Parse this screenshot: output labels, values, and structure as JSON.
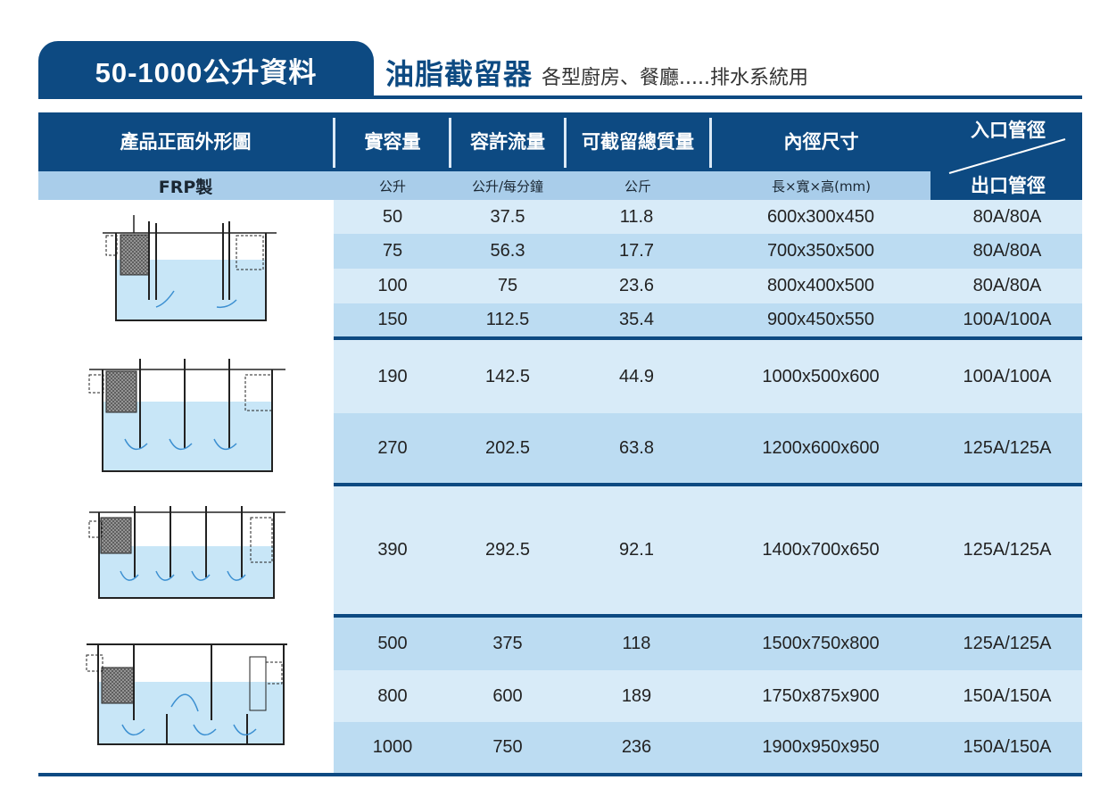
{
  "header": {
    "tab_label": "50-1000公升資料",
    "title": "油脂截留器",
    "subtitle": "各型廚房、餐廳.....排水系統用"
  },
  "table": {
    "columns": [
      "產品正面外形圖",
      "實容量",
      "容許流量",
      "可截留總質量",
      "內徑尺寸"
    ],
    "pipe_inlet_label": "入口管徑",
    "pipe_outlet_label": "出口管徑",
    "units": [
      "FRP製",
      "公升",
      "公升/每分鐘",
      "公斤",
      "長×寬×高(mm)"
    ],
    "rows": [
      {
        "volume": "50",
        "flow": "37.5",
        "mass": "11.8",
        "size": "600x300x450",
        "pipe": "80A/80A"
      },
      {
        "volume": "75",
        "flow": "56.3",
        "mass": "17.7",
        "size": "700x350x500",
        "pipe": "80A/80A"
      },
      {
        "volume": "100",
        "flow": "75",
        "mass": "23.6",
        "size": "800x400x500",
        "pipe": "80A/80A"
      },
      {
        "volume": "150",
        "flow": "112.5",
        "mass": "35.4",
        "size": "900x450x550",
        "pipe": "100A/100A"
      },
      {
        "volume": "190",
        "flow": "142.5",
        "mass": "44.9",
        "size": "1000x500x600",
        "pipe": "100A/100A"
      },
      {
        "volume": "270",
        "flow": "202.5",
        "mass": "63.8",
        "size": "1200x600x600",
        "pipe": "125A/125A"
      },
      {
        "volume": "390",
        "flow": "292.5",
        "mass": "92.1",
        "size": "1400x700x650",
        "pipe": "125A/125A"
      },
      {
        "volume": "500",
        "flow": "375",
        "mass": "118",
        "size": "1500x750x800",
        "pipe": "125A/125A"
      },
      {
        "volume": "800",
        "flow": "600",
        "mass": "189",
        "size": "1750x875x900",
        "pipe": "150A/150A"
      },
      {
        "volume": "1000",
        "flow": "750",
        "mass": "236",
        "size": "1900x950x950",
        "pipe": "150A/150A"
      }
    ]
  },
  "colors": {
    "navy": "#0d4a82",
    "light_blue": "#d8ebf8",
    "mid_blue": "#bcdcf2",
    "units_blue": "#a9cdea"
  },
  "diagrams": [
    "grease-trap-2-chamber-icon",
    "grease-trap-3-chamber-icon",
    "grease-trap-4-chamber-icon",
    "grease-trap-large-icon"
  ]
}
